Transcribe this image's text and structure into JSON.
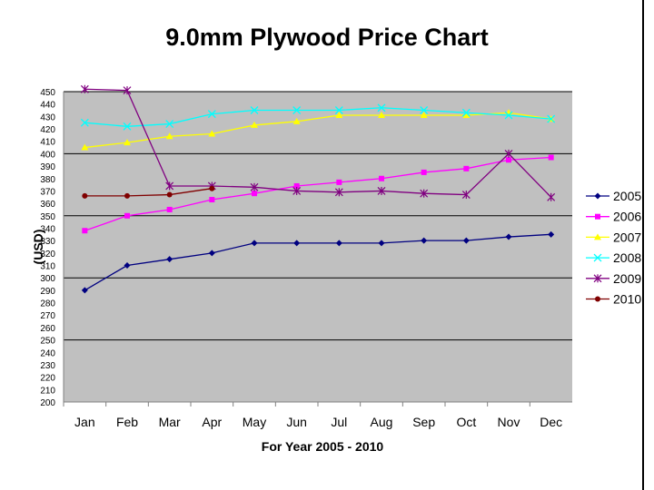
{
  "chart_data": {
    "type": "line",
    "title": "9.0mm Plywood Price Chart",
    "xlabel": "For Year 2005 - 2010",
    "ylabel": "(USD)",
    "categories": [
      "Jan",
      "Feb",
      "Mar",
      "Apr",
      "May",
      "Jun",
      "Jul",
      "Aug",
      "Sep",
      "Oct",
      "Nov",
      "Dec"
    ],
    "ylim": [
      200,
      450
    ],
    "yticks": [
      200,
      210,
      220,
      230,
      240,
      250,
      260,
      270,
      280,
      290,
      300,
      310,
      320,
      330,
      340,
      350,
      360,
      370,
      380,
      390,
      400,
      410,
      420,
      430,
      440,
      450
    ],
    "grid": true,
    "legend_position": "right",
    "series": [
      {
        "name": "2005",
        "color": "#000080",
        "marker": "diamond",
        "values": [
          290,
          310,
          315,
          320,
          328,
          328,
          328,
          328,
          330,
          330,
          333,
          335
        ]
      },
      {
        "name": "2006",
        "color": "#ff00ff",
        "marker": "square",
        "values": [
          338,
          350,
          355,
          363,
          368,
          374,
          377,
          380,
          385,
          388,
          395,
          397
        ]
      },
      {
        "name": "2007",
        "color": "#ffff00",
        "marker": "triangle",
        "values": [
          405,
          409,
          414,
          416,
          423,
          426,
          431,
          431,
          431,
          431,
          433,
          428
        ]
      },
      {
        "name": "2008",
        "color": "#00ffff",
        "marker": "x",
        "values": [
          425,
          422,
          424,
          432,
          435,
          435,
          435,
          437,
          435,
          433,
          431,
          428
        ]
      },
      {
        "name": "2009",
        "color": "#800080",
        "marker": "star",
        "values": [
          452,
          451,
          374,
          374,
          373,
          370,
          369,
          370,
          368,
          367,
          400,
          365
        ]
      },
      {
        "name": "2010",
        "color": "#800000",
        "marker": "circle",
        "values": [
          366,
          366,
          367,
          372,
          null,
          null,
          null,
          null,
          null,
          null,
          null,
          null
        ]
      }
    ]
  }
}
